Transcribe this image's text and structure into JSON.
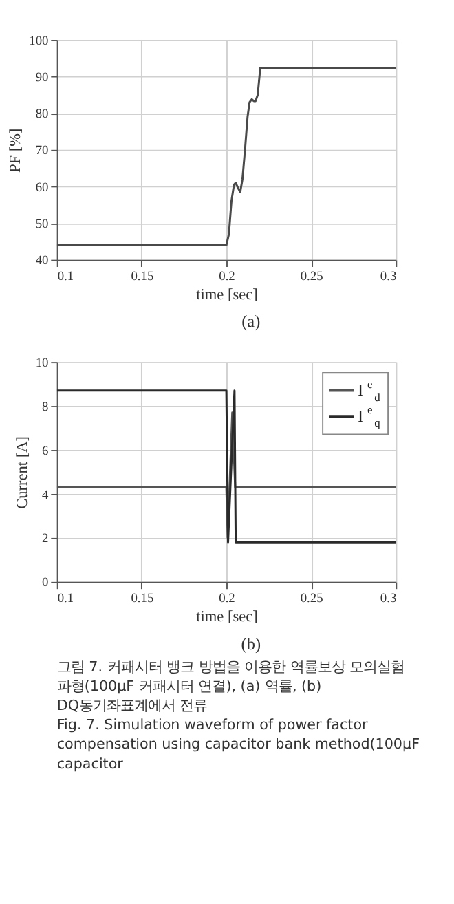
{
  "chart_data": [
    {
      "type": "line",
      "xlabel": "time [sec]",
      "ylabel": "PF [%]",
      "xlim": [
        0.1,
        0.3
      ],
      "ylim": [
        40,
        100
      ],
      "xticks": [
        0.1,
        0.15,
        0.2,
        0.25,
        0.3
      ],
      "yticks": [
        40,
        50,
        60,
        70,
        80,
        90,
        100
      ],
      "grid": true,
      "series": [
        {
          "color": "#4a4a4a",
          "x": [
            0.1,
            0.2,
            0.2015,
            0.203,
            0.2045,
            0.2055,
            0.207,
            0.2082,
            0.2095,
            0.211,
            0.2125,
            0.2137,
            0.215,
            0.2162,
            0.2172,
            0.2185,
            0.22,
            0.3
          ],
          "values": [
            44,
            44,
            47,
            56,
            60.5,
            61,
            59.5,
            58.5,
            62,
            70,
            79,
            83,
            83.8,
            83.3,
            83.3,
            85,
            92.3,
            92.3
          ]
        }
      ],
      "annotations": [
        "(a)"
      ]
    },
    {
      "type": "line",
      "xlabel": "time [sec]",
      "ylabel": "Current [A]",
      "xlim": [
        0.1,
        0.3
      ],
      "ylim": [
        0,
        10
      ],
      "xticks": [
        0.1,
        0.15,
        0.2,
        0.25,
        0.3
      ],
      "yticks": [
        0,
        2,
        4,
        6,
        8,
        10
      ],
      "grid": true,
      "legend": "top right",
      "series": [
        {
          "name": "I$^{e}$$_{d}$",
          "color": "#555555",
          "x": [
            0.1,
            0.2,
            0.2008,
            0.2035,
            0.2052,
            0.3
          ],
          "values": [
            4.3,
            4.3,
            2.0,
            7.7,
            4.3,
            4.3
          ]
        },
        {
          "name": "I$^{e}$$_{q}$",
          "color": "#2a2a2a",
          "x": [
            0.1,
            0.2,
            0.201,
            0.2048,
            0.2055,
            0.3
          ],
          "values": [
            8.7,
            8.7,
            1.8,
            8.7,
            1.8,
            1.8
          ]
        }
      ],
      "annotations": [
        "(b)",
        "그림 7. 커패시터 뱅크 방법을 이용한 역률보상 모의실험 파형(100μF 커패시터 연결), (a) 역률, (b) DQ동기좌표계에서 전류",
        "Fig. 7. Simulation waveform of power factor compensation using capacitor bank method(100μF capacitor"
      ]
    }
  ]
}
